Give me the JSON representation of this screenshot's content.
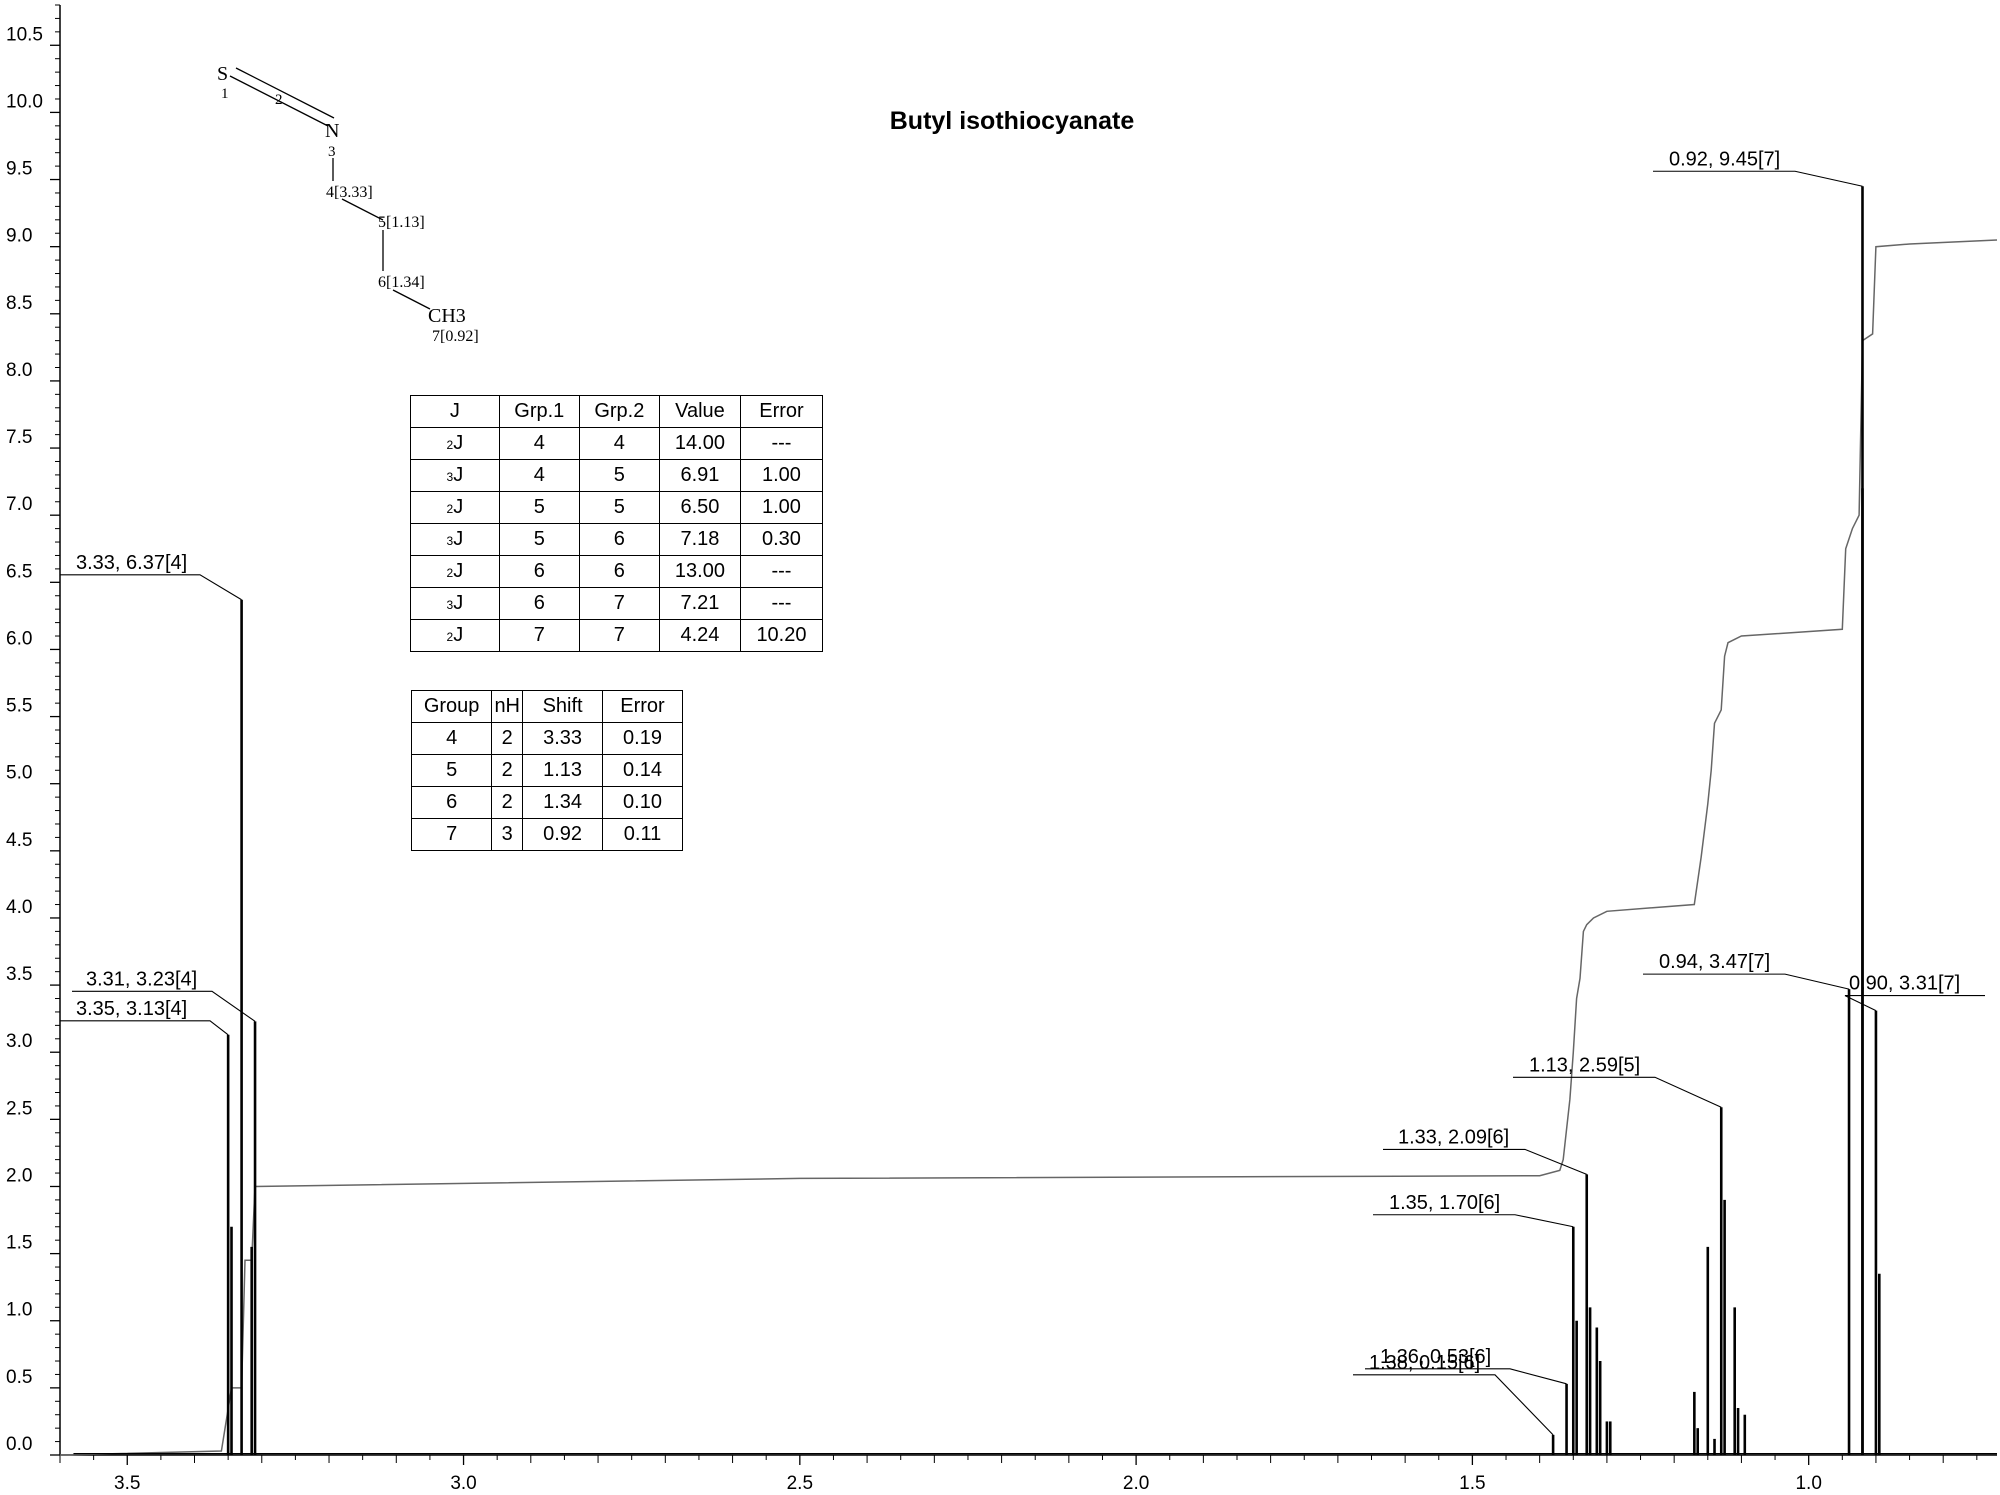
{
  "chart_data": {
    "type": "line",
    "title": "Butyl isothiocyanate",
    "xlabel": "",
    "ylabel": "",
    "xlim": [
      3.6,
      0.72
    ],
    "ylim": [
      0,
      10.8
    ],
    "x_ticks": [
      "3.5",
      "3.0",
      "2.5",
      "2.0",
      "1.5",
      "1.0"
    ],
    "y_ticks": [
      "0.0",
      "0.5",
      "1.0",
      "1.5",
      "2.0",
      "2.5",
      "3.0",
      "3.5",
      "4.0",
      "4.5",
      "5.0",
      "5.5",
      "6.0",
      "6.5",
      "7.0",
      "7.5",
      "8.0",
      "8.5",
      "9.0",
      "9.5",
      "10.0",
      "10.5"
    ],
    "peaks": [
      {
        "x": 3.35,
        "y": 3.13,
        "label": "3.35, 3.13[4]"
      },
      {
        "x": 3.345,
        "y": 1.7
      },
      {
        "x": 3.33,
        "y": 6.37,
        "label": "3.33, 6.37[4]"
      },
      {
        "x": 3.315,
        "y": 1.55
      },
      {
        "x": 3.31,
        "y": 3.23,
        "label": "3.31, 3.23[4]"
      },
      {
        "x": 1.38,
        "y": 0.15,
        "label": "1.38, 0.15[6]"
      },
      {
        "x": 1.36,
        "y": 0.53,
        "label": "1.36, 0.53[6]"
      },
      {
        "x": 1.35,
        "y": 1.7,
        "label": "1.35, 1.70[6]"
      },
      {
        "x": 1.345,
        "y": 1.0
      },
      {
        "x": 1.33,
        "y": 2.09,
        "label": "1.33, 2.09[6]"
      },
      {
        "x": 1.325,
        "y": 1.1
      },
      {
        "x": 1.315,
        "y": 0.95
      },
      {
        "x": 1.31,
        "y": 0.7
      },
      {
        "x": 1.3,
        "y": 0.25
      },
      {
        "x": 1.295,
        "y": 0.25
      },
      {
        "x": 1.17,
        "y": 0.47
      },
      {
        "x": 1.165,
        "y": 0.2
      },
      {
        "x": 1.15,
        "y": 1.55
      },
      {
        "x": 1.14,
        "y": 0.12
      },
      {
        "x": 1.13,
        "y": 2.59,
        "label": "1.13, 2.59[5]"
      },
      {
        "x": 1.125,
        "y": 1.9
      },
      {
        "x": 1.11,
        "y": 1.1
      },
      {
        "x": 1.105,
        "y": 0.35
      },
      {
        "x": 1.095,
        "y": 0.3
      },
      {
        "x": 0.94,
        "y": 3.47,
        "label": "0.94, 3.47[7]"
      },
      {
        "x": 0.92,
        "y": 9.45,
        "label": "0.92, 9.45[7]"
      },
      {
        "x": 0.92,
        "y": 7.2
      },
      {
        "x": 0.9,
        "y": 3.31,
        "label": "0.90, 3.31[7]"
      },
      {
        "x": 0.895,
        "y": 1.35
      }
    ],
    "integral": [
      [
        3.6,
        0.0
      ],
      [
        3.36,
        0.03
      ],
      [
        3.345,
        0.5
      ],
      [
        3.33,
        0.5
      ],
      [
        3.325,
        1.45
      ],
      [
        3.315,
        1.45
      ],
      [
        3.31,
        2.0
      ],
      [
        2.5,
        2.06
      ],
      [
        1.4,
        2.08
      ],
      [
        1.37,
        2.12
      ],
      [
        1.365,
        2.2
      ],
      [
        1.355,
        2.65
      ],
      [
        1.35,
        3.0
      ],
      [
        1.345,
        3.4
      ],
      [
        1.34,
        3.55
      ],
      [
        1.335,
        3.9
      ],
      [
        1.33,
        3.95
      ],
      [
        1.32,
        4.0
      ],
      [
        1.3,
        4.05
      ],
      [
        1.17,
        4.1
      ],
      [
        1.16,
        4.45
      ],
      [
        1.15,
        4.85
      ],
      [
        1.145,
        5.1
      ],
      [
        1.14,
        5.45
      ],
      [
        1.13,
        5.55
      ],
      [
        1.125,
        5.95
      ],
      [
        1.12,
        6.05
      ],
      [
        1.1,
        6.1
      ],
      [
        0.95,
        6.15
      ],
      [
        0.945,
        6.75
      ],
      [
        0.935,
        6.9
      ],
      [
        0.925,
        7.0
      ],
      [
        0.92,
        8.3
      ],
      [
        0.905,
        8.35
      ],
      [
        0.9,
        9.0
      ],
      [
        0.85,
        9.02
      ],
      [
        0.72,
        9.05
      ]
    ],
    "molecule": {
      "atoms": [
        "S",
        "1",
        "2",
        "N",
        "3",
        "4[3.33]",
        "5[1.13]",
        "6[1.34]",
        "CH3",
        "7[0.92]"
      ]
    },
    "coupling_table": {
      "headers": [
        "J",
        "Grp.1",
        "Grp.2",
        "Value",
        "Error"
      ],
      "rows": [
        [
          "2",
          "J",
          "4",
          "4",
          "14.00",
          "---"
        ],
        [
          "3",
          "J",
          "4",
          "5",
          "6.91",
          "1.00"
        ],
        [
          "2",
          "J",
          "5",
          "5",
          "6.50",
          "1.00"
        ],
        [
          "3",
          "J",
          "5",
          "6",
          "7.18",
          "0.30"
        ],
        [
          "2",
          "J",
          "6",
          "6",
          "13.00",
          "---"
        ],
        [
          "3",
          "J",
          "6",
          "7",
          "7.21",
          "---"
        ],
        [
          "2",
          "J",
          "7",
          "7",
          "4.24",
          "10.20"
        ]
      ]
    },
    "shift_table": {
      "headers": [
        "Group",
        "nH",
        "Shift",
        "Error"
      ],
      "rows": [
        [
          "4",
          "2",
          "3.33",
          "0.19"
        ],
        [
          "5",
          "2",
          "1.13",
          "0.14"
        ],
        [
          "6",
          "2",
          "1.34",
          "0.10"
        ],
        [
          "7",
          "3",
          "0.92",
          "0.11"
        ]
      ]
    },
    "grid": false,
    "legend": "none"
  }
}
